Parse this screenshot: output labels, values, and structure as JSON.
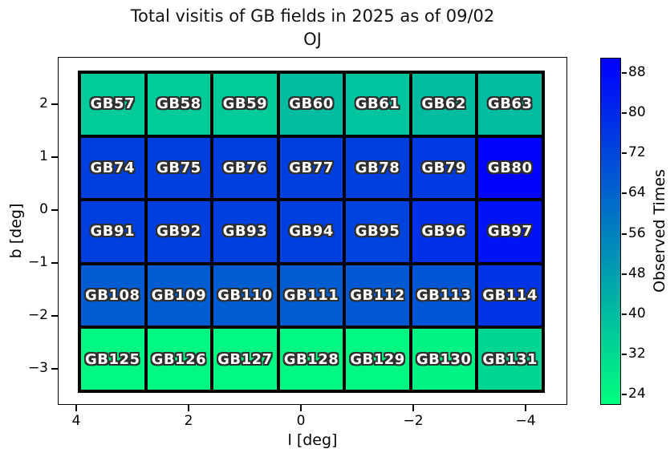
{
  "title": {
    "line1": "Total visitis of GB fields in 2025 as of 09/02",
    "line2": "OJ"
  },
  "chart_data": {
    "type": "heatmap",
    "xlabel": "l [deg]",
    "ylabel": "b [deg]",
    "x_ticks": [
      4,
      2,
      0,
      -2,
      -4
    ],
    "y_ticks": [
      2,
      1,
      0,
      -1,
      -2,
      -3
    ],
    "x_axis_inverted": true,
    "grid": false,
    "colormap": "winter_r",
    "colormap_low_hex": "#00ff7f",
    "colormap_high_hex": "#0000ff",
    "colorbar": {
      "label": "Observed Times",
      "ticks": [
        88,
        80,
        72,
        64,
        56,
        48,
        40,
        32,
        24
      ],
      "vmin": 22,
      "vmax": 91,
      "position": "right"
    },
    "rows": [
      {
        "cells": [
          {
            "field": "GB57",
            "value": 36
          },
          {
            "field": "GB58",
            "value": 36
          },
          {
            "field": "GB59",
            "value": 36
          },
          {
            "field": "GB60",
            "value": 40
          },
          {
            "field": "GB61",
            "value": 38
          },
          {
            "field": "GB62",
            "value": 40
          },
          {
            "field": "GB63",
            "value": 40
          }
        ]
      },
      {
        "cells": [
          {
            "field": "GB74",
            "value": 74
          },
          {
            "field": "GB75",
            "value": 74
          },
          {
            "field": "GB76",
            "value": 74
          },
          {
            "field": "GB77",
            "value": 74
          },
          {
            "field": "GB78",
            "value": 74
          },
          {
            "field": "GB79",
            "value": 75
          },
          {
            "field": "GB80",
            "value": 90
          }
        ]
      },
      {
        "cells": [
          {
            "field": "GB91",
            "value": 74
          },
          {
            "field": "GB92",
            "value": 74
          },
          {
            "field": "GB93",
            "value": 74
          },
          {
            "field": "GB94",
            "value": 74
          },
          {
            "field": "GB95",
            "value": 73
          },
          {
            "field": "GB96",
            "value": 78
          },
          {
            "field": "GB97",
            "value": 86
          }
        ]
      },
      {
        "cells": [
          {
            "field": "GB108",
            "value": 66
          },
          {
            "field": "GB109",
            "value": 66
          },
          {
            "field": "GB110",
            "value": 66
          },
          {
            "field": "GB111",
            "value": 66
          },
          {
            "field": "GB112",
            "value": 67
          },
          {
            "field": "GB113",
            "value": 68
          },
          {
            "field": "GB114",
            "value": 77
          }
        ]
      },
      {
        "cells": [
          {
            "field": "GB125",
            "value": 24
          },
          {
            "field": "GB126",
            "value": 24
          },
          {
            "field": "GB127",
            "value": 24
          },
          {
            "field": "GB128",
            "value": 24
          },
          {
            "field": "GB129",
            "value": 24
          },
          {
            "field": "GB130",
            "value": 25
          },
          {
            "field": "GB131",
            "value": 33
          }
        ]
      }
    ]
  }
}
